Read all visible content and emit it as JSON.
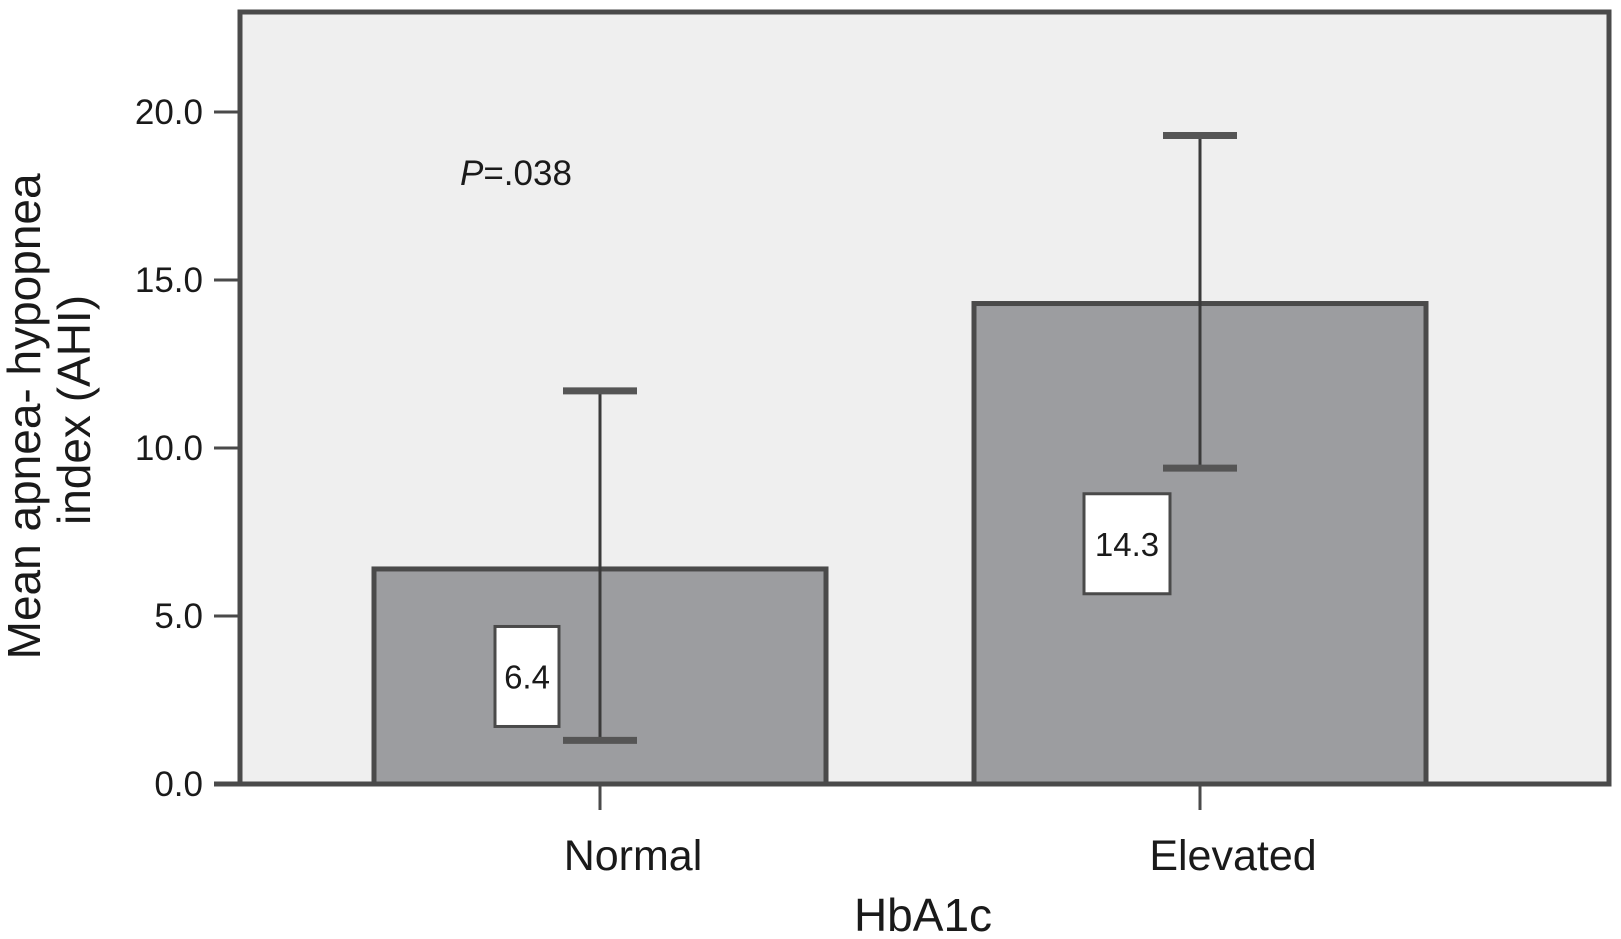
{
  "chart_data": {
    "type": "bar",
    "categories": [
      "Normal",
      "Elevated"
    ],
    "values": [
      6.4,
      14.3
    ],
    "value_labels": [
      "6.4",
      "14.3"
    ],
    "error_bars": {
      "lower": [
        1.3,
        9.4
      ],
      "upper": [
        11.7,
        19.3
      ]
    },
    "xlabel": "HbA1c",
    "ylabel_lines": [
      "Mean apnea- hypopnea",
      "index (AHI)"
    ],
    "ylim": [
      0,
      22
    ],
    "yticks": [
      0,
      5,
      10,
      15,
      20
    ],
    "ytick_labels": [
      "0.0",
      "5.0",
      "10.0",
      "15.0",
      "20.0"
    ],
    "annotation": {
      "italic": "P",
      "text": "=.038"
    },
    "grid": false,
    "colors": {
      "plot_background": "#efefef",
      "bar_fill": "#9c9da0",
      "bar_border": "#4a4a4a",
      "axis": "#4a4a4a"
    }
  }
}
